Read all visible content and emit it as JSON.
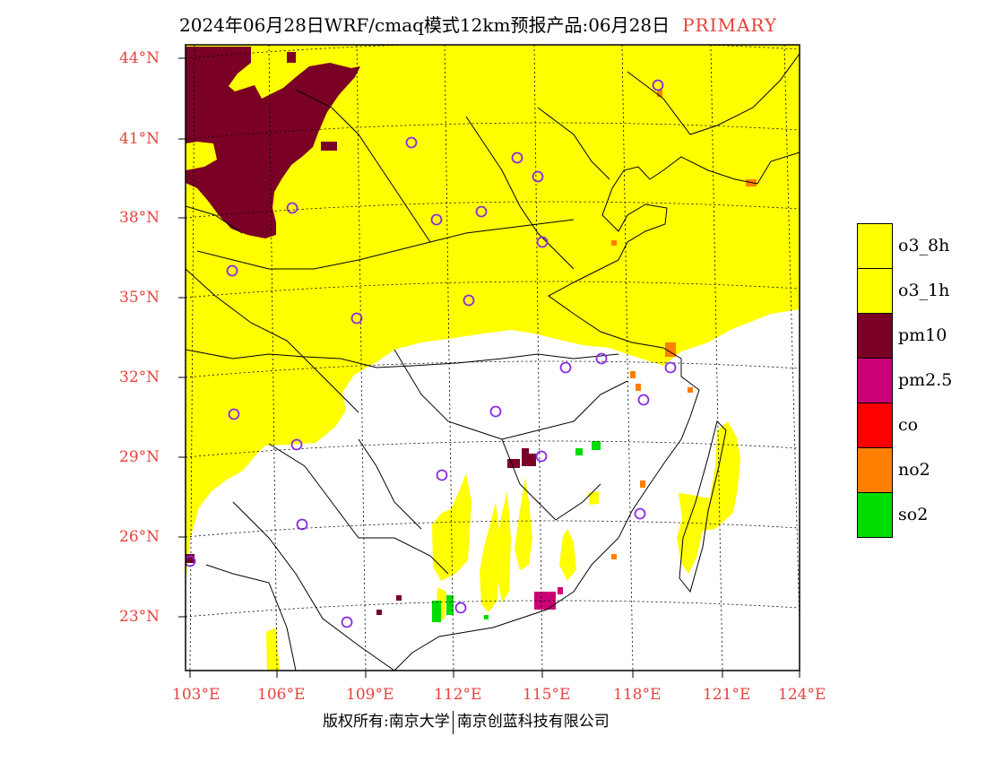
{
  "title": {
    "text": "2024年06月28日WRF/cmaq模式12km预报产品:06月28日",
    "tag": "PRIMARY"
  },
  "map": {
    "lat_labels": [
      "44°N",
      "41°N",
      "38°N",
      "35°N",
      "32°N",
      "29°N",
      "26°N",
      "23°N"
    ],
    "lon_labels": [
      "103°E",
      "106°E",
      "109°E",
      "112°E",
      "115°E",
      "118°E",
      "121°E",
      "124°E"
    ],
    "lat_range": [
      21.0,
      44.5
    ],
    "lon_range": [
      102.7,
      124.0
    ],
    "colors": {
      "o3": "#ffff00",
      "pm10": "#7a0026",
      "pm25": "#cc0077",
      "co": "#ff0000",
      "no2": "#ff7f00",
      "so2": "#00dd00",
      "station": "#8a2be2",
      "label": "#e8413c"
    }
  },
  "legend": {
    "items": [
      {
        "label": "o3_8h",
        "color": "#ffff00"
      },
      {
        "label": "o3_1h",
        "color": "#ffff00"
      },
      {
        "label": "pm10",
        "color": "#7a0026"
      },
      {
        "label": "pm2.5",
        "color": "#cc0077"
      },
      {
        "label": "co",
        "color": "#ff0000"
      },
      {
        "label": "no2",
        "color": "#ff7f00"
      },
      {
        "label": "so2",
        "color": "#00dd00"
      }
    ]
  },
  "footer": {
    "copyright": "版权所有:南京大学",
    "company": "南京创蓝科技有限公司"
  }
}
